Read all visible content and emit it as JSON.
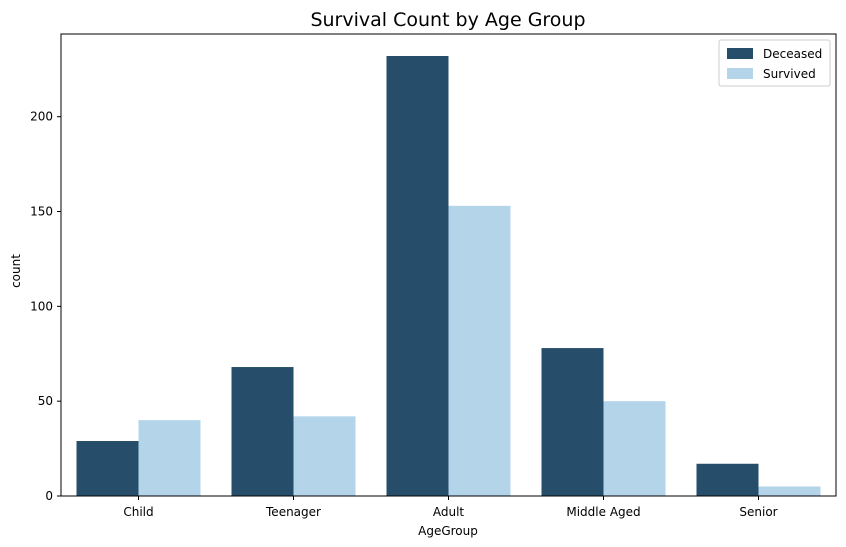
{
  "chart_data": {
    "type": "bar",
    "title": "Survival Count by Age Group",
    "xlabel": "AgeGroup",
    "ylabel": "count",
    "categories": [
      "Child",
      "Teenager",
      "Adult",
      "Middle Aged",
      "Senior"
    ],
    "series": [
      {
        "name": "Deceased",
        "color": "#264e6a",
        "values": [
          29,
          68,
          232,
          78,
          17
        ]
      },
      {
        "name": "Survived",
        "color": "#b4d4ea",
        "values": [
          40,
          42,
          153,
          50,
          5
        ]
      }
    ],
    "ylim": [
      0,
      243.6
    ],
    "yticks": [
      0,
      50,
      100,
      150,
      200
    ],
    "grid": false,
    "legend_position": "top-right"
  }
}
